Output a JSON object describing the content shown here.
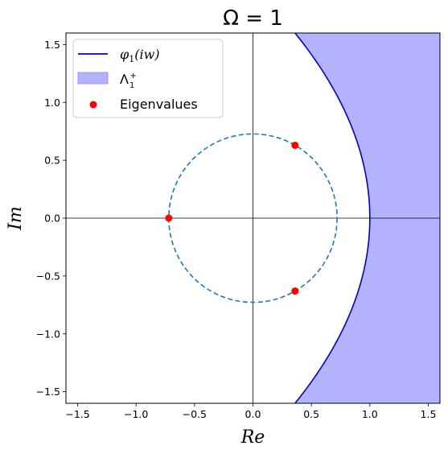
{
  "chart_data": {
    "type": "scatter",
    "title": "Ω = 1",
    "xlabel": "Re",
    "ylabel": "Im",
    "xlim": [
      -1.6,
      1.6
    ],
    "ylim": [
      -1.6,
      1.6
    ],
    "grid": false,
    "legend_placement": "top-left",
    "xticks": [
      "−1.5",
      "−1.0",
      "−0.5",
      "0.0",
      "0.5",
      "1.0",
      "1.5"
    ],
    "yticks": [
      "1.5",
      "1.0",
      "0.5",
      "0.0",
      "−0.5",
      "−1.0",
      "−1.5"
    ],
    "circle": {
      "radius": 0.72,
      "style": "dashed",
      "color": "#1f77b4"
    },
    "curve": {
      "name": "φ1(iw)",
      "vertex_re": 1.0,
      "color": "#0000cc"
    },
    "region": {
      "name": "Λ1+",
      "color": "#b3b3ff"
    },
    "eigenvalues": {
      "name": "Eigenvalues",
      "color": "#ff0000",
      "points": [
        {
          "re": -0.72,
          "im": 0.0
        },
        {
          "re": 0.36,
          "im": 0.63
        },
        {
          "re": 0.36,
          "im": -0.63
        }
      ]
    },
    "legend": [
      {
        "label": "φ1(iw)",
        "kind": "line"
      },
      {
        "label": "Λ1+",
        "kind": "patch"
      },
      {
        "label": "Eigenvalues",
        "kind": "marker"
      }
    ]
  }
}
